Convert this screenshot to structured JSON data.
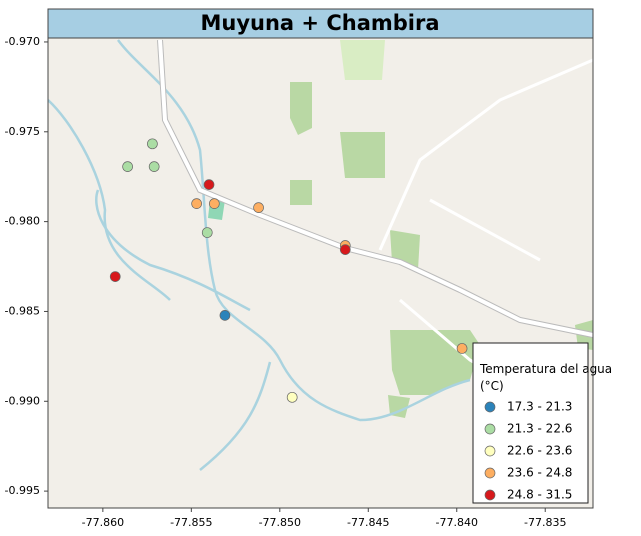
{
  "chart_data": {
    "type": "scatter",
    "title": "Muyuna + Chambira",
    "legend_title": "Temperatura del agua (°C)",
    "legend": "lower right",
    "xlim": [
      -77.8631,
      -77.8323
    ],
    "ylim": [
      -0.99594,
      -0.96978
    ],
    "xticks": [
      {
        "value": -77.86,
        "label": "-77.860"
      },
      {
        "value": -77.855,
        "label": "-77.855"
      },
      {
        "value": -77.85,
        "label": "-77.850"
      },
      {
        "value": -77.845,
        "label": "-77.845"
      },
      {
        "value": -77.84,
        "label": "-77.840"
      },
      {
        "value": -77.835,
        "label": "-77.835"
      }
    ],
    "yticks": [
      {
        "value": -0.97,
        "label": "-0.970"
      },
      {
        "value": -0.975,
        "label": "-0.975"
      },
      {
        "value": -0.98,
        "label": "-0.980"
      },
      {
        "value": -0.985,
        "label": "-0.985"
      },
      {
        "value": -0.99,
        "label": "-0.990"
      },
      {
        "value": -0.995,
        "label": "-0.995"
      }
    ],
    "series": [
      {
        "name": "17.3 - 21.3",
        "color": "#2b83ba",
        "x": [
          -77.8531
        ],
        "values": [
          -0.98522
        ]
      },
      {
        "name": "21.3 - 22.6",
        "color": "#abdda4",
        "x": [
          -77.8572,
          -77.8586,
          -77.8571,
          -77.8541
        ],
        "values": [
          -0.97567,
          -0.97694,
          -0.97694,
          -0.98061
        ]
      },
      {
        "name": "22.6 - 23.6",
        "color": "#ffffbf",
        "x": [
          -77.8493
        ],
        "values": [
          -0.98978
        ]
      },
      {
        "name": "23.6 - 24.8",
        "color": "#fdae61",
        "x": [
          -77.8547,
          -77.8537,
          -77.8512,
          -77.8463,
          -77.8397
        ],
        "values": [
          -0.979,
          -0.979,
          -0.97922,
          -0.98133,
          -0.98706
        ]
      },
      {
        "name": "24.8 - 31.5",
        "color": "#d7191c",
        "x": [
          -77.854,
          -77.8593,
          -77.8463
        ],
        "values": [
          -0.97794,
          -0.98306,
          -0.98156
        ]
      }
    ]
  }
}
